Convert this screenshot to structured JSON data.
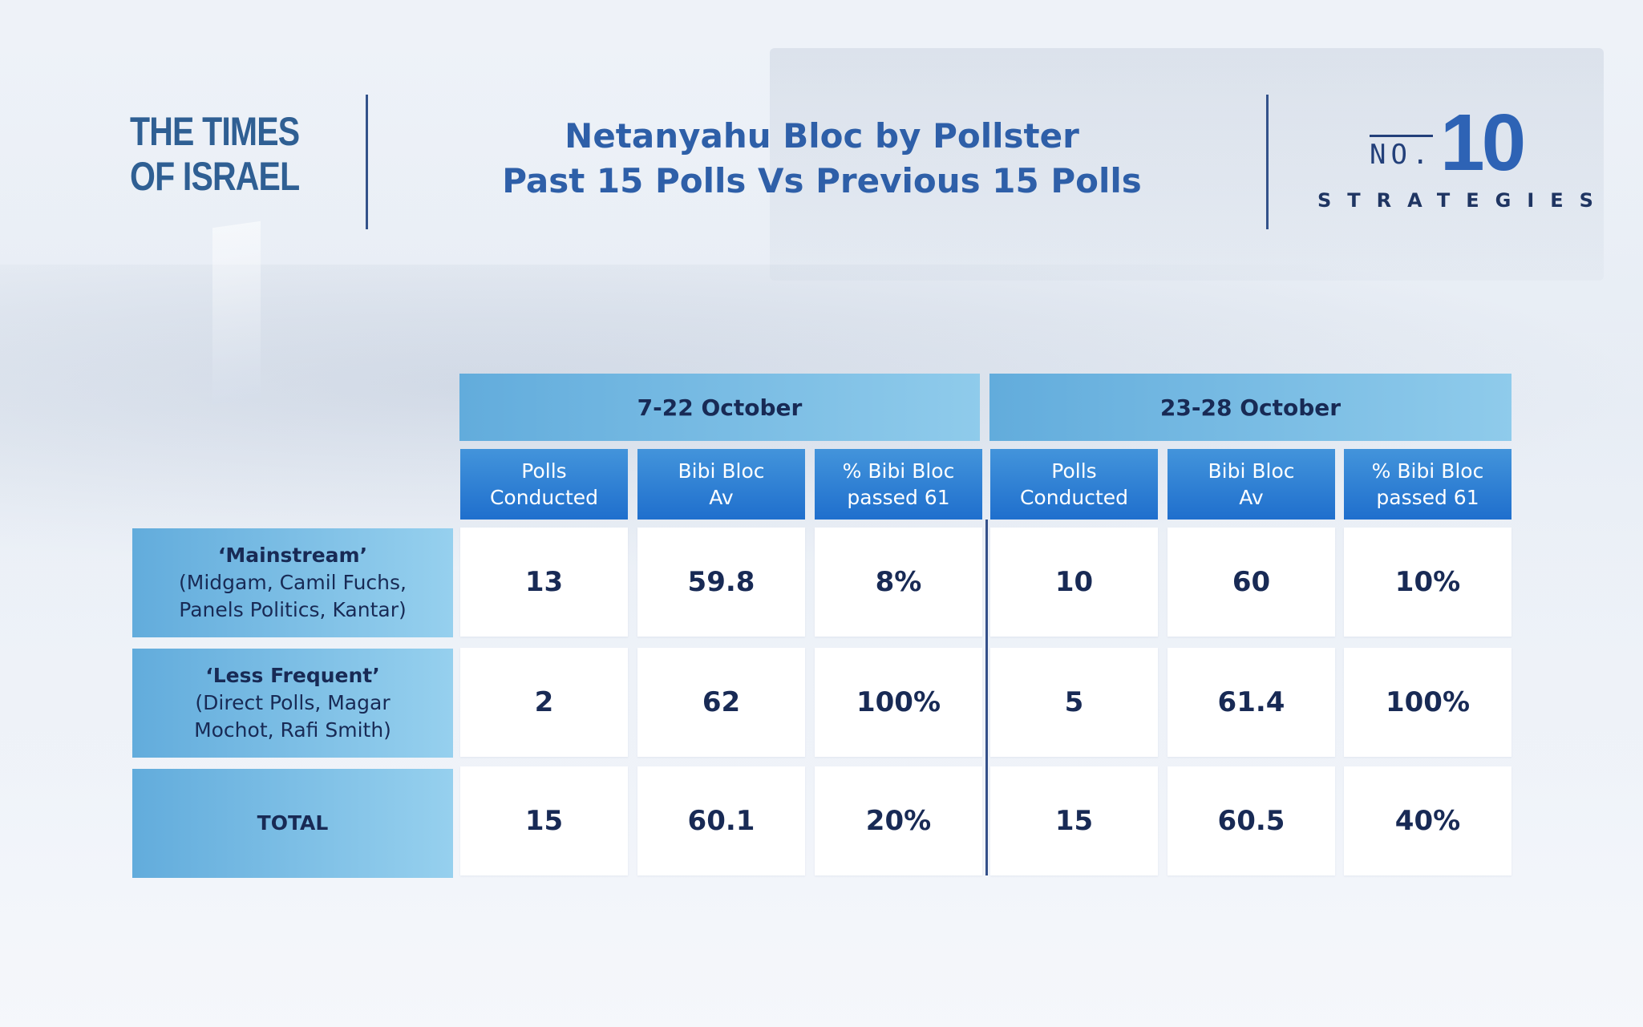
{
  "header": {
    "logo_line1": "THE TIMES",
    "logo_line2": "OF ISRAEL",
    "title_line1": "Netanyahu Bloc by Pollster",
    "title_line2": "Past 15 Polls Vs Previous 15 Polls",
    "brand_no": "NO.",
    "brand_number": "10",
    "brand_sub": "STRATEGIES"
  },
  "chart_data": {
    "type": "table",
    "groups": [
      {
        "label": "7-22 October"
      },
      {
        "label": "23-28 October"
      }
    ],
    "column_headers": [
      {
        "line1": "Polls",
        "line2": "Conducted"
      },
      {
        "line1": "Bibi Bloc",
        "line2": "Av"
      },
      {
        "line1": "% Bibi Bloc",
        "line2": "passed 61"
      },
      {
        "line1": "Polls",
        "line2": "Conducted"
      },
      {
        "line1": "Bibi Bloc",
        "line2": "Av"
      },
      {
        "line1": "% Bibi Bloc",
        "line2": "passed 61"
      }
    ],
    "rows": [
      {
        "title": "‘Mainstream’",
        "detail_line1": "(Midgam, Camil Fuchs,",
        "detail_line2": "Panels Politics, Kantar)",
        "values": [
          "13",
          "59.8",
          "8%",
          "10",
          "60",
          "10%"
        ]
      },
      {
        "title": "‘Less Frequent’",
        "detail_line1": "(Direct Polls, Magar",
        "detail_line2": "Mochot, Rafi Smith)",
        "values": [
          "2",
          "62",
          "100%",
          "5",
          "61.4",
          "100%"
        ]
      },
      {
        "title": "TOTAL",
        "detail_line1": "",
        "detail_line2": "",
        "values": [
          "15",
          "60.1",
          "20%",
          "15",
          "60.5",
          "40%"
        ]
      }
    ]
  }
}
